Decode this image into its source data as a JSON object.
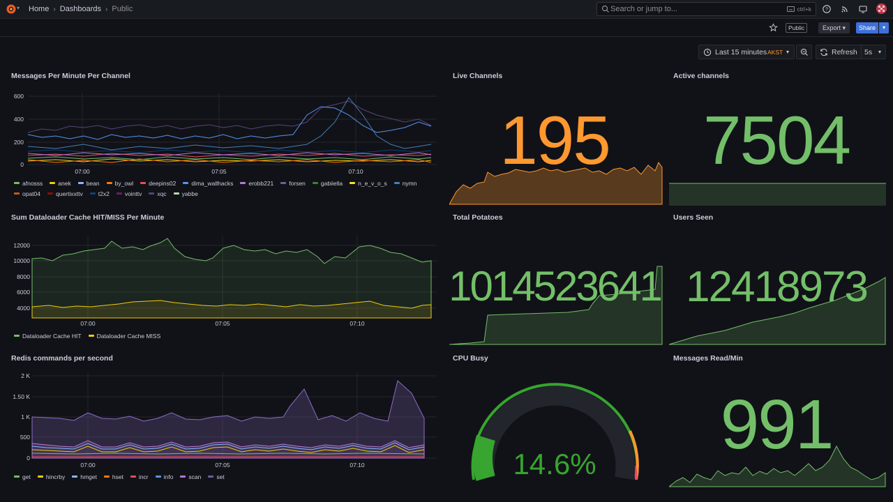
{
  "header": {
    "breadcrumbs": [
      "Home",
      "Dashboards",
      "Public"
    ],
    "search_placeholder": "Search or jump to...",
    "search_shortcut": "ctrl+k"
  },
  "toolbar": {
    "public_badge": "Public",
    "export_label": "Export",
    "share_label": "Share"
  },
  "time_controls": {
    "range_label": "Last 15 minutes",
    "timezone": "AKST",
    "refresh_label": "Refresh",
    "interval": "5s"
  },
  "colors": {
    "orange": "#ff9830",
    "green": "#73bf69",
    "gauge_green": "#37a52f",
    "gauge_red": "#f2495c",
    "accent_blue": "#3d71d9"
  },
  "panels": {
    "messages_per_minute": {
      "title": "Messages Per Minute Per Channel",
      "yticks": [
        "600",
        "400",
        "200",
        "0"
      ],
      "xticks": [
        "07:00",
        "07:05",
        "07:10"
      ],
      "legend": [
        {
          "name": "afnosss",
          "color": "#73bf69"
        },
        {
          "name": "anek",
          "color": "#f2cc0c"
        },
        {
          "name": "bean",
          "color": "#8ab8ff"
        },
        {
          "name": "by_owl",
          "color": "#ff780a"
        },
        {
          "name": "deepins02",
          "color": "#f2495c"
        },
        {
          "name": "dima_wallhacks",
          "color": "#5794f2"
        },
        {
          "name": "erobb221",
          "color": "#b877d9"
        },
        {
          "name": "forsen",
          "color": "#705da0"
        },
        {
          "name": "gabiiella",
          "color": "#37872d"
        },
        {
          "name": "n_e_v_o_s",
          "color": "#fade2a"
        },
        {
          "name": "nymn",
          "color": "#447ebc"
        },
        {
          "name": "opat04",
          "color": "#c15c17"
        },
        {
          "name": "quertixxttv",
          "color": "#890f02"
        },
        {
          "name": "t2x2",
          "color": "#0a437c"
        },
        {
          "name": "vointtv",
          "color": "#6d1f62"
        },
        {
          "name": "xqc",
          "color": "#584477"
        },
        {
          "name": "yabbe",
          "color": "#b7dbab"
        }
      ]
    },
    "live_channels": {
      "title": "Live Channels",
      "value": "195"
    },
    "active_channels": {
      "title": "Active channels",
      "value": "7504"
    },
    "dataloader": {
      "title": "Sum Dataloader Cache HIT/MISS Per Minute",
      "yticks": [
        "12000",
        "10000",
        "8000",
        "6000",
        "4000"
      ],
      "xticks": [
        "07:00",
        "07:05",
        "07:10"
      ],
      "legend": [
        {
          "name": "Dataloader Cache HIT",
          "color": "#73bf69"
        },
        {
          "name": "Dataloader Cache MISS",
          "color": "#f2cc0c"
        }
      ]
    },
    "total_potatoes": {
      "title": "Total Potatoes",
      "value": "1014523641"
    },
    "users_seen": {
      "title": "Users Seen",
      "value": "12418973"
    },
    "redis": {
      "title": "Redis commands per second",
      "yticks": [
        "2 K",
        "1.50 K",
        "1 K",
        "500",
        "0"
      ],
      "xticks": [
        "07:00",
        "07:05",
        "07:10"
      ],
      "legend": [
        {
          "name": "get",
          "color": "#73bf69"
        },
        {
          "name": "hincrby",
          "color": "#f2cc0c"
        },
        {
          "name": "hmget",
          "color": "#8ab8ff"
        },
        {
          "name": "hset",
          "color": "#ff780a"
        },
        {
          "name": "incr",
          "color": "#f2495c"
        },
        {
          "name": "info",
          "color": "#5794f2"
        },
        {
          "name": "scan",
          "color": "#b877d9"
        },
        {
          "name": "set",
          "color": "#705da0"
        }
      ]
    },
    "cpu_busy": {
      "title": "CPU Busy",
      "value": "14.6%",
      "percent": 14.6
    },
    "messages_read": {
      "title": "Messages Read/Min",
      "value": "991"
    }
  }
}
